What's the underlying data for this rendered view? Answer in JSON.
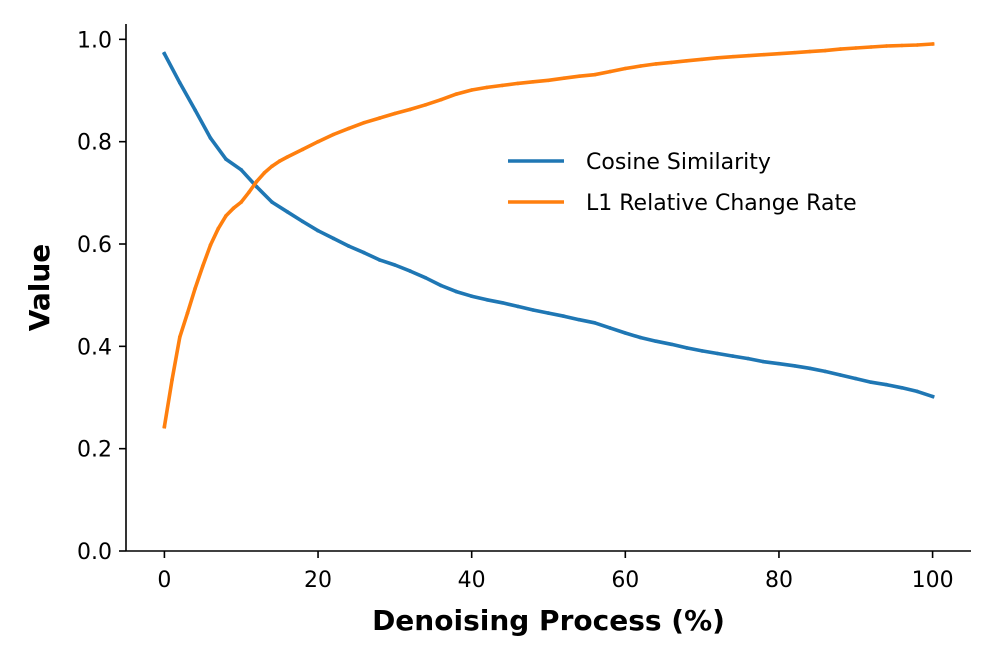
{
  "chart_data": {
    "type": "line",
    "title": "",
    "xlabel": "Denoising Process (%)",
    "ylabel": "Value",
    "xlim": [
      -5,
      105
    ],
    "ylim": [
      0.0,
      1.03
    ],
    "xticks": [
      0,
      20,
      40,
      60,
      80,
      100
    ],
    "xtick_labels": [
      "0",
      "20",
      "40",
      "60",
      "80",
      "100"
    ],
    "yticks": [
      0.0,
      0.2,
      0.4,
      0.6,
      0.8,
      1.0
    ],
    "ytick_labels": [
      "0.0",
      "0.2",
      "0.4",
      "0.6",
      "0.8",
      "1.0"
    ],
    "grid": false,
    "legend_position": "upper-right",
    "series": [
      {
        "name": "Cosine Similarity",
        "color": "#1f77b4",
        "x": [
          0,
          2,
          4,
          6,
          8,
          10,
          12,
          14,
          16,
          18,
          20,
          22,
          24,
          26,
          28,
          30,
          32,
          34,
          36,
          38,
          40,
          42,
          44,
          46,
          48,
          50,
          52,
          54,
          56,
          58,
          60,
          62,
          64,
          66,
          68,
          70,
          72,
          74,
          76,
          78,
          80,
          82,
          84,
          86,
          88,
          90,
          92,
          94,
          96,
          98,
          100
        ],
        "y": [
          0.972,
          0.915,
          0.862,
          0.807,
          0.766,
          0.745,
          0.712,
          0.682,
          0.663,
          0.644,
          0.626,
          0.611,
          0.596,
          0.583,
          0.569,
          0.559,
          0.547,
          0.534,
          0.519,
          0.507,
          0.498,
          0.491,
          0.485,
          0.478,
          0.471,
          0.465,
          0.459,
          0.452,
          0.446,
          0.436,
          0.426,
          0.417,
          0.41,
          0.404,
          0.397,
          0.391,
          0.386,
          0.381,
          0.376,
          0.37,
          0.366,
          0.362,
          0.357,
          0.351,
          0.344,
          0.337,
          0.33,
          0.325,
          0.319,
          0.312,
          0.302
        ]
      },
      {
        "name": "L1 Relative Change Rate",
        "color": "#ff7f0e",
        "x": [
          0,
          1,
          2,
          3,
          4,
          5,
          6,
          7,
          8,
          9,
          10,
          11,
          12,
          13,
          14,
          15,
          16,
          18,
          20,
          22,
          24,
          26,
          28,
          30,
          32,
          34,
          36,
          38,
          40,
          42,
          44,
          46,
          48,
          50,
          52,
          54,
          56,
          58,
          60,
          62,
          64,
          66,
          68,
          70,
          72,
          74,
          76,
          78,
          80,
          82,
          84,
          86,
          88,
          90,
          92,
          94,
          96,
          98,
          100
        ],
        "y": [
          0.243,
          0.335,
          0.418,
          0.465,
          0.513,
          0.557,
          0.598,
          0.63,
          0.655,
          0.67,
          0.682,
          0.701,
          0.722,
          0.739,
          0.752,
          0.762,
          0.77,
          0.785,
          0.8,
          0.814,
          0.826,
          0.837,
          0.846,
          0.855,
          0.863,
          0.872,
          0.882,
          0.893,
          0.901,
          0.906,
          0.91,
          0.914,
          0.917,
          0.92,
          0.924,
          0.928,
          0.931,
          0.937,
          0.943,
          0.948,
          0.952,
          0.955,
          0.958,
          0.961,
          0.964,
          0.966,
          0.968,
          0.97,
          0.972,
          0.974,
          0.976,
          0.978,
          0.981,
          0.983,
          0.985,
          0.987,
          0.988,
          0.989,
          0.991
        ]
      }
    ]
  }
}
